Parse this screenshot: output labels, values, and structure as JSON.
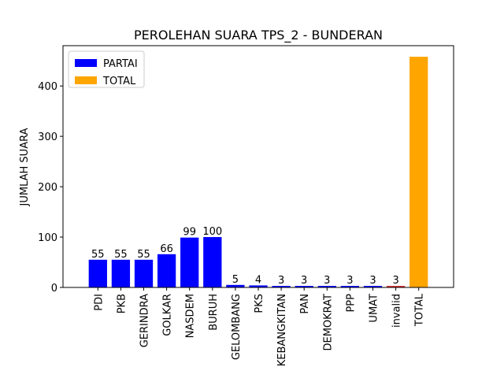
{
  "chart_data": {
    "type": "bar",
    "title": "PEROLEHAN SUARA TPS_2 - BUNDERAN",
    "xlabel": "",
    "ylabel": "JUMLAH SUARA",
    "categories": [
      "PDI",
      "PKB",
      "GERINDRA",
      "GOLKAR",
      "NASDEM",
      "BURUH",
      "GELOMBANG",
      "PKS",
      "KEBANGKITAN",
      "PAN",
      "DEMOKRAT",
      "PPP",
      "UMAT",
      "invalid",
      "TOTAL"
    ],
    "values": [
      55,
      55,
      55,
      66,
      99,
      100,
      5,
      4,
      3,
      3,
      3,
      3,
      3,
      3,
      458
    ],
    "data_labels": [
      "55",
      "55",
      "55",
      "66",
      "99",
      "100",
      "5",
      "4",
      "3",
      "3",
      "3",
      "3",
      "3",
      "3",
      ""
    ],
    "bar_colors": [
      "#0000ff",
      "#0000ff",
      "#0000ff",
      "#0000ff",
      "#0000ff",
      "#0000ff",
      "#0000ff",
      "#0000ff",
      "#0000ff",
      "#0000ff",
      "#0000ff",
      "#0000ff",
      "#0000ff",
      "#d62728",
      "#ffa500"
    ],
    "ylim": [
      0,
      480
    ],
    "yticks": [
      0,
      100,
      200,
      300,
      400
    ],
    "ytick_labels": [
      "0",
      "100",
      "200",
      "300",
      "400"
    ],
    "grid": false,
    "legend_position": "top-left",
    "legend": [
      {
        "label": "PARTAI",
        "color": "#0000ff"
      },
      {
        "label": "TOTAL",
        "color": "#ffa500"
      }
    ]
  }
}
